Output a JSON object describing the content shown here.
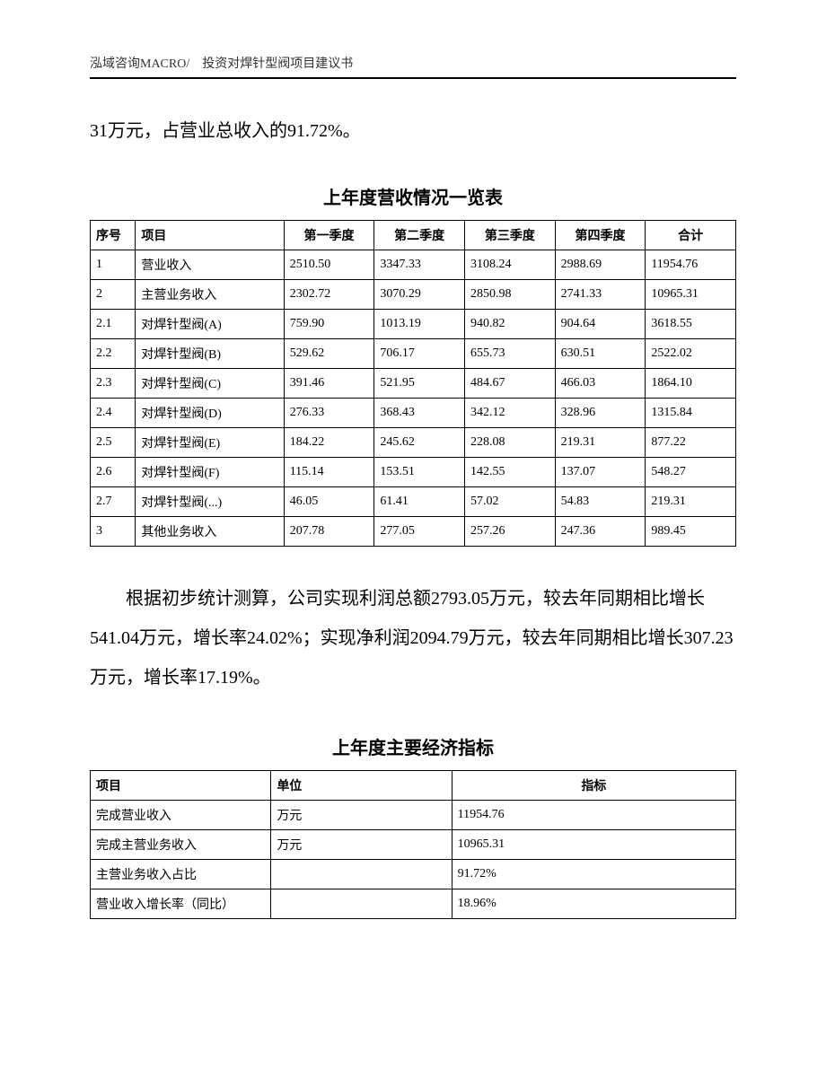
{
  "header": {
    "text": "泓域咨询MACRO/　投资对焊针型阀项目建议书"
  },
  "intro": "31万元，占营业总收入的91.72%。",
  "table1": {
    "title": "上年度营收情况一览表",
    "columns": [
      "序号",
      "项目",
      "第一季度",
      "第二季度",
      "第三季度",
      "第四季度",
      "合计"
    ],
    "col_align": [
      "left",
      "left",
      "left",
      "left",
      "left",
      "left",
      "center"
    ],
    "header_align": [
      "left",
      "left",
      "center",
      "center",
      "center",
      "center",
      "center"
    ],
    "rows": [
      [
        "1",
        "营业收入",
        "2510.50",
        "3347.33",
        "3108.24",
        "2988.69",
        "11954.76"
      ],
      [
        "2",
        "主营业务收入",
        "2302.72",
        "3070.29",
        "2850.98",
        "2741.33",
        "10965.31"
      ],
      [
        "2.1",
        "对焊针型阀(A)",
        "759.90",
        "1013.19",
        "940.82",
        "904.64",
        "3618.55"
      ],
      [
        "2.2",
        "对焊针型阀(B)",
        "529.62",
        "706.17",
        "655.73",
        "630.51",
        "2522.02"
      ],
      [
        "2.3",
        "对焊针型阀(C)",
        "391.46",
        "521.95",
        "484.67",
        "466.03",
        "1864.10"
      ],
      [
        "2.4",
        "对焊针型阀(D)",
        "276.33",
        "368.43",
        "342.12",
        "328.96",
        "1315.84"
      ],
      [
        "2.5",
        "对焊针型阀(E)",
        "184.22",
        "245.62",
        "228.08",
        "219.31",
        "877.22"
      ],
      [
        "2.6",
        "对焊针型阀(F)",
        "115.14",
        "153.51",
        "142.55",
        "137.07",
        "548.27"
      ],
      [
        "2.7",
        "对焊针型阀(...)",
        "46.05",
        "61.41",
        "57.02",
        "54.83",
        "219.31"
      ],
      [
        "3",
        "其他业务收入",
        "207.78",
        "277.05",
        "257.26",
        "247.36",
        "989.45"
      ]
    ]
  },
  "body_para": "根据初步统计测算，公司实现利润总额2793.05万元，较去年同期相比增长541.04万元，增长率24.02%；实现净利润2094.79万元，较去年同期相比增长307.23万元，增长率17.19%。",
  "table2": {
    "title": "上年度主要经济指标",
    "columns": [
      "项目",
      "单位",
      "指标"
    ],
    "header_align": [
      "left",
      "left",
      "center"
    ],
    "rows": [
      [
        "完成营业收入",
        "万元",
        "11954.76"
      ],
      [
        "完成主营业务收入",
        "万元",
        "10965.31"
      ],
      [
        "主营业务收入占比",
        "",
        "91.72%"
      ],
      [
        "营业收入增长率（同比）",
        "",
        "18.96%"
      ]
    ]
  },
  "styles": {
    "page_bg": "#ffffff",
    "text_color": "#000000",
    "border_color": "#000000",
    "body_fontsize_pt": 15,
    "table_fontsize_pt": 10,
    "title_fontsize_pt": 15
  }
}
